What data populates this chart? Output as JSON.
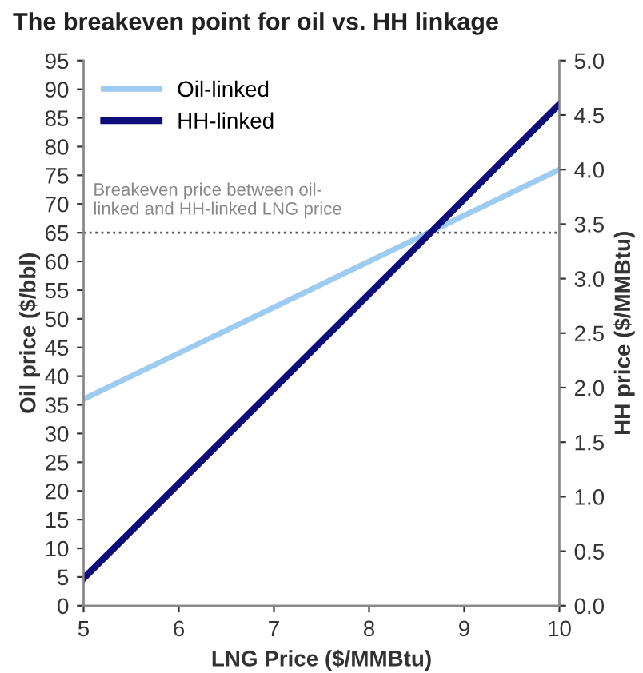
{
  "chart_data": {
    "type": "line",
    "title": "The breakeven point for oil vs. HH linkage",
    "xlabel": "LNG Price ($/MMBtu)",
    "ylabel": "Oil price ($/bbl)",
    "y2label": "HH price ($/MMBtu)",
    "series": [
      {
        "name": "Oil-linked",
        "color": "#9ecbf0",
        "values": [
          36,
          76
        ]
      },
      {
        "name": "HH-linked",
        "color": "#0c0c7a",
        "values": [
          0.25,
          4.6
        ],
        "axis": "y2"
      }
    ],
    "x": [
      5,
      10
    ],
    "xlim": [
      5,
      10
    ],
    "xticks": [
      5,
      6,
      7,
      8,
      9,
      10
    ],
    "ylim": [
      0,
      95
    ],
    "yticks": [
      0,
      5,
      10,
      15,
      20,
      25,
      30,
      35,
      40,
      45,
      50,
      55,
      60,
      65,
      70,
      75,
      80,
      85,
      90,
      95
    ],
    "y2lim": [
      0,
      5
    ],
    "y2ticks": [
      {
        "value": 0,
        "label": "0.0"
      },
      {
        "value": 0.5,
        "label": "0.5"
      },
      {
        "value": 1,
        "label": "1.0"
      },
      {
        "value": 1.5,
        "label": "1.5"
      },
      {
        "value": 2,
        "label": "2.0"
      },
      {
        "value": 2.5,
        "label": "2.5"
      },
      {
        "value": 3,
        "label": "3.0"
      },
      {
        "value": 3.5,
        "label": "3.5"
      },
      {
        "value": 4,
        "label": "4.0"
      },
      {
        "value": 4.5,
        "label": "4.5"
      },
      {
        "value": 5,
        "label": "5.0"
      }
    ],
    "ref_lines": [
      {
        "axis": "y",
        "value": 65,
        "label": "Breakeven price between oil-\nlinked and HH-linked LNG price",
        "color": "#555555",
        "line_style": "dotted"
      }
    ],
    "grid": false,
    "legend": "top left",
    "marker": "none",
    "line_style": "solid"
  }
}
